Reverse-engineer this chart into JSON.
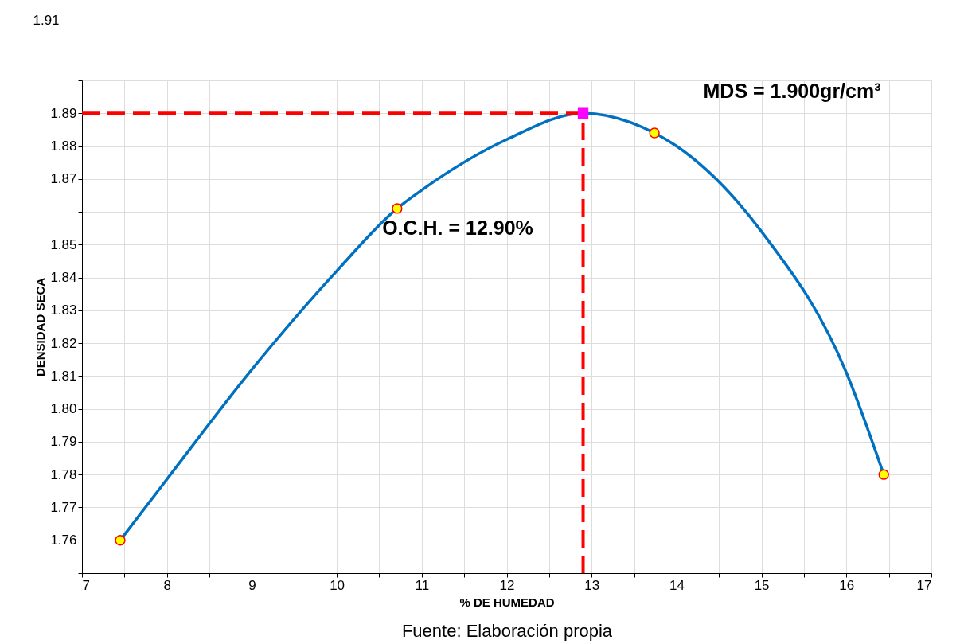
{
  "chart_data": {
    "type": "line",
    "xlabel": "% DE HUMEDAD",
    "ylabel": "DENSIDAD SECA",
    "series": [
      {
        "color": "#0070c0",
        "marker": "none",
        "line_style": "solid",
        "x": [
          7.45,
          8,
          9,
          10,
          10.71,
          11,
          12,
          12.9,
          13.74,
          14,
          15,
          16,
          16.44
        ],
        "values": [
          1.76,
          1.7786,
          1.812,
          1.842,
          1.861,
          1.8666,
          1.882,
          1.89,
          1.884,
          1.88,
          1.854,
          1.811,
          1.78
        ]
      },
      {
        "type": "scatter",
        "color": "#ffff00",
        "marker": "circle",
        "x": [
          7.45,
          10.71,
          13.74,
          16.44
        ],
        "values": [
          1.76,
          1.861,
          1.884,
          1.78
        ]
      },
      {
        "type": "line",
        "color": "#ff0000",
        "marker": "none",
        "line_style": "dashed",
        "x": [
          7,
          12.9
        ],
        "values": [
          1.89,
          1.89
        ]
      },
      {
        "type": "line",
        "color": "#ff0000",
        "marker": "none",
        "line_style": "dashed",
        "x": [
          12.9,
          12.9
        ],
        "values": [
          1.75,
          1.89
        ]
      },
      {
        "type": "scatter",
        "color": "#ff00ff",
        "marker": "square",
        "x": [
          12.9
        ],
        "values": [
          1.89
        ]
      }
    ],
    "xlim": [
      7,
      17
    ],
    "ylim": [
      1.75,
      1.9
    ],
    "xticks": [
      7,
      {
        "value": 7.5,
        "label": null
      },
      8,
      {
        "value": 8.5,
        "label": null
      },
      9,
      {
        "value": 9.5,
        "label": null
      },
      10,
      {
        "value": 10.5,
        "label": null
      },
      11,
      {
        "value": 11.5,
        "label": null
      },
      12,
      {
        "value": 12.5,
        "label": null
      },
      13,
      {
        "value": 13.5,
        "label": null
      },
      14,
      {
        "value": 14.5,
        "label": null
      },
      15,
      {
        "value": 15.5,
        "label": null
      },
      16,
      {
        "value": 16.5,
        "label": null
      },
      17
    ],
    "yticks": [
      {
        "value": 1.75,
        "label": null
      },
      1.76,
      1.77,
      1.78,
      1.79,
      {
        "value": 1.8,
        "label": "1.80"
      },
      1.81,
      1.82,
      1.83,
      1.84,
      1.85,
      {
        "value": 1.86,
        "label": null
      },
      1.87,
      1.88,
      1.89,
      {
        "value": 1.9,
        "label": null
      }
    ],
    "grid": true,
    "annotations": [
      "1.91",
      "MDS = 1.900gr/cm³",
      "O.C.H. = 12.90%",
      "Fuente: Elaboración propia"
    ]
  }
}
